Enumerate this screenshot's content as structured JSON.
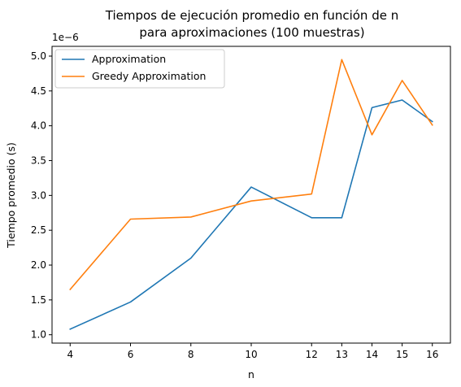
{
  "chart_data": {
    "type": "line",
    "title_line1": "Tiempos de ejecución promedio en función de n",
    "title_line2": "para aproximaciones (100 muestras)",
    "xlabel": "n",
    "ylabel": "Tiempo promedio (s)",
    "y_offset_label": "1e−6",
    "x": [
      4,
      6,
      8,
      10,
      12,
      13,
      14,
      15,
      16
    ],
    "x_tick_labels": [
      "4",
      "6",
      "8",
      "10",
      "12",
      "13",
      "14",
      "15",
      "16"
    ],
    "y_ticks": [
      1.0,
      1.5,
      2.0,
      2.5,
      3.0,
      3.5,
      4.0,
      4.5,
      5.0
    ],
    "y_tick_labels": [
      "1.0",
      "1.5",
      "2.0",
      "2.5",
      "3.0",
      "3.5",
      "4.0",
      "4.5",
      "5.0"
    ],
    "xlim": [
      3.4,
      16.6
    ],
    "ylim": [
      0.88,
      5.14
    ],
    "y_scale": "1e-6",
    "grid": false,
    "legend_position": "upper-left",
    "series": [
      {
        "name": "Approximation",
        "color": "#1f77b4",
        "values": [
          1.08,
          1.47,
          2.1,
          3.12,
          2.68,
          2.68,
          4.26,
          4.37,
          4.06
        ]
      },
      {
        "name": "Greedy Approximation",
        "color": "#ff7f0e",
        "values": [
          1.65,
          2.66,
          2.69,
          2.92,
          3.02,
          4.95,
          3.87,
          4.65,
          4.01
        ]
      }
    ]
  }
}
